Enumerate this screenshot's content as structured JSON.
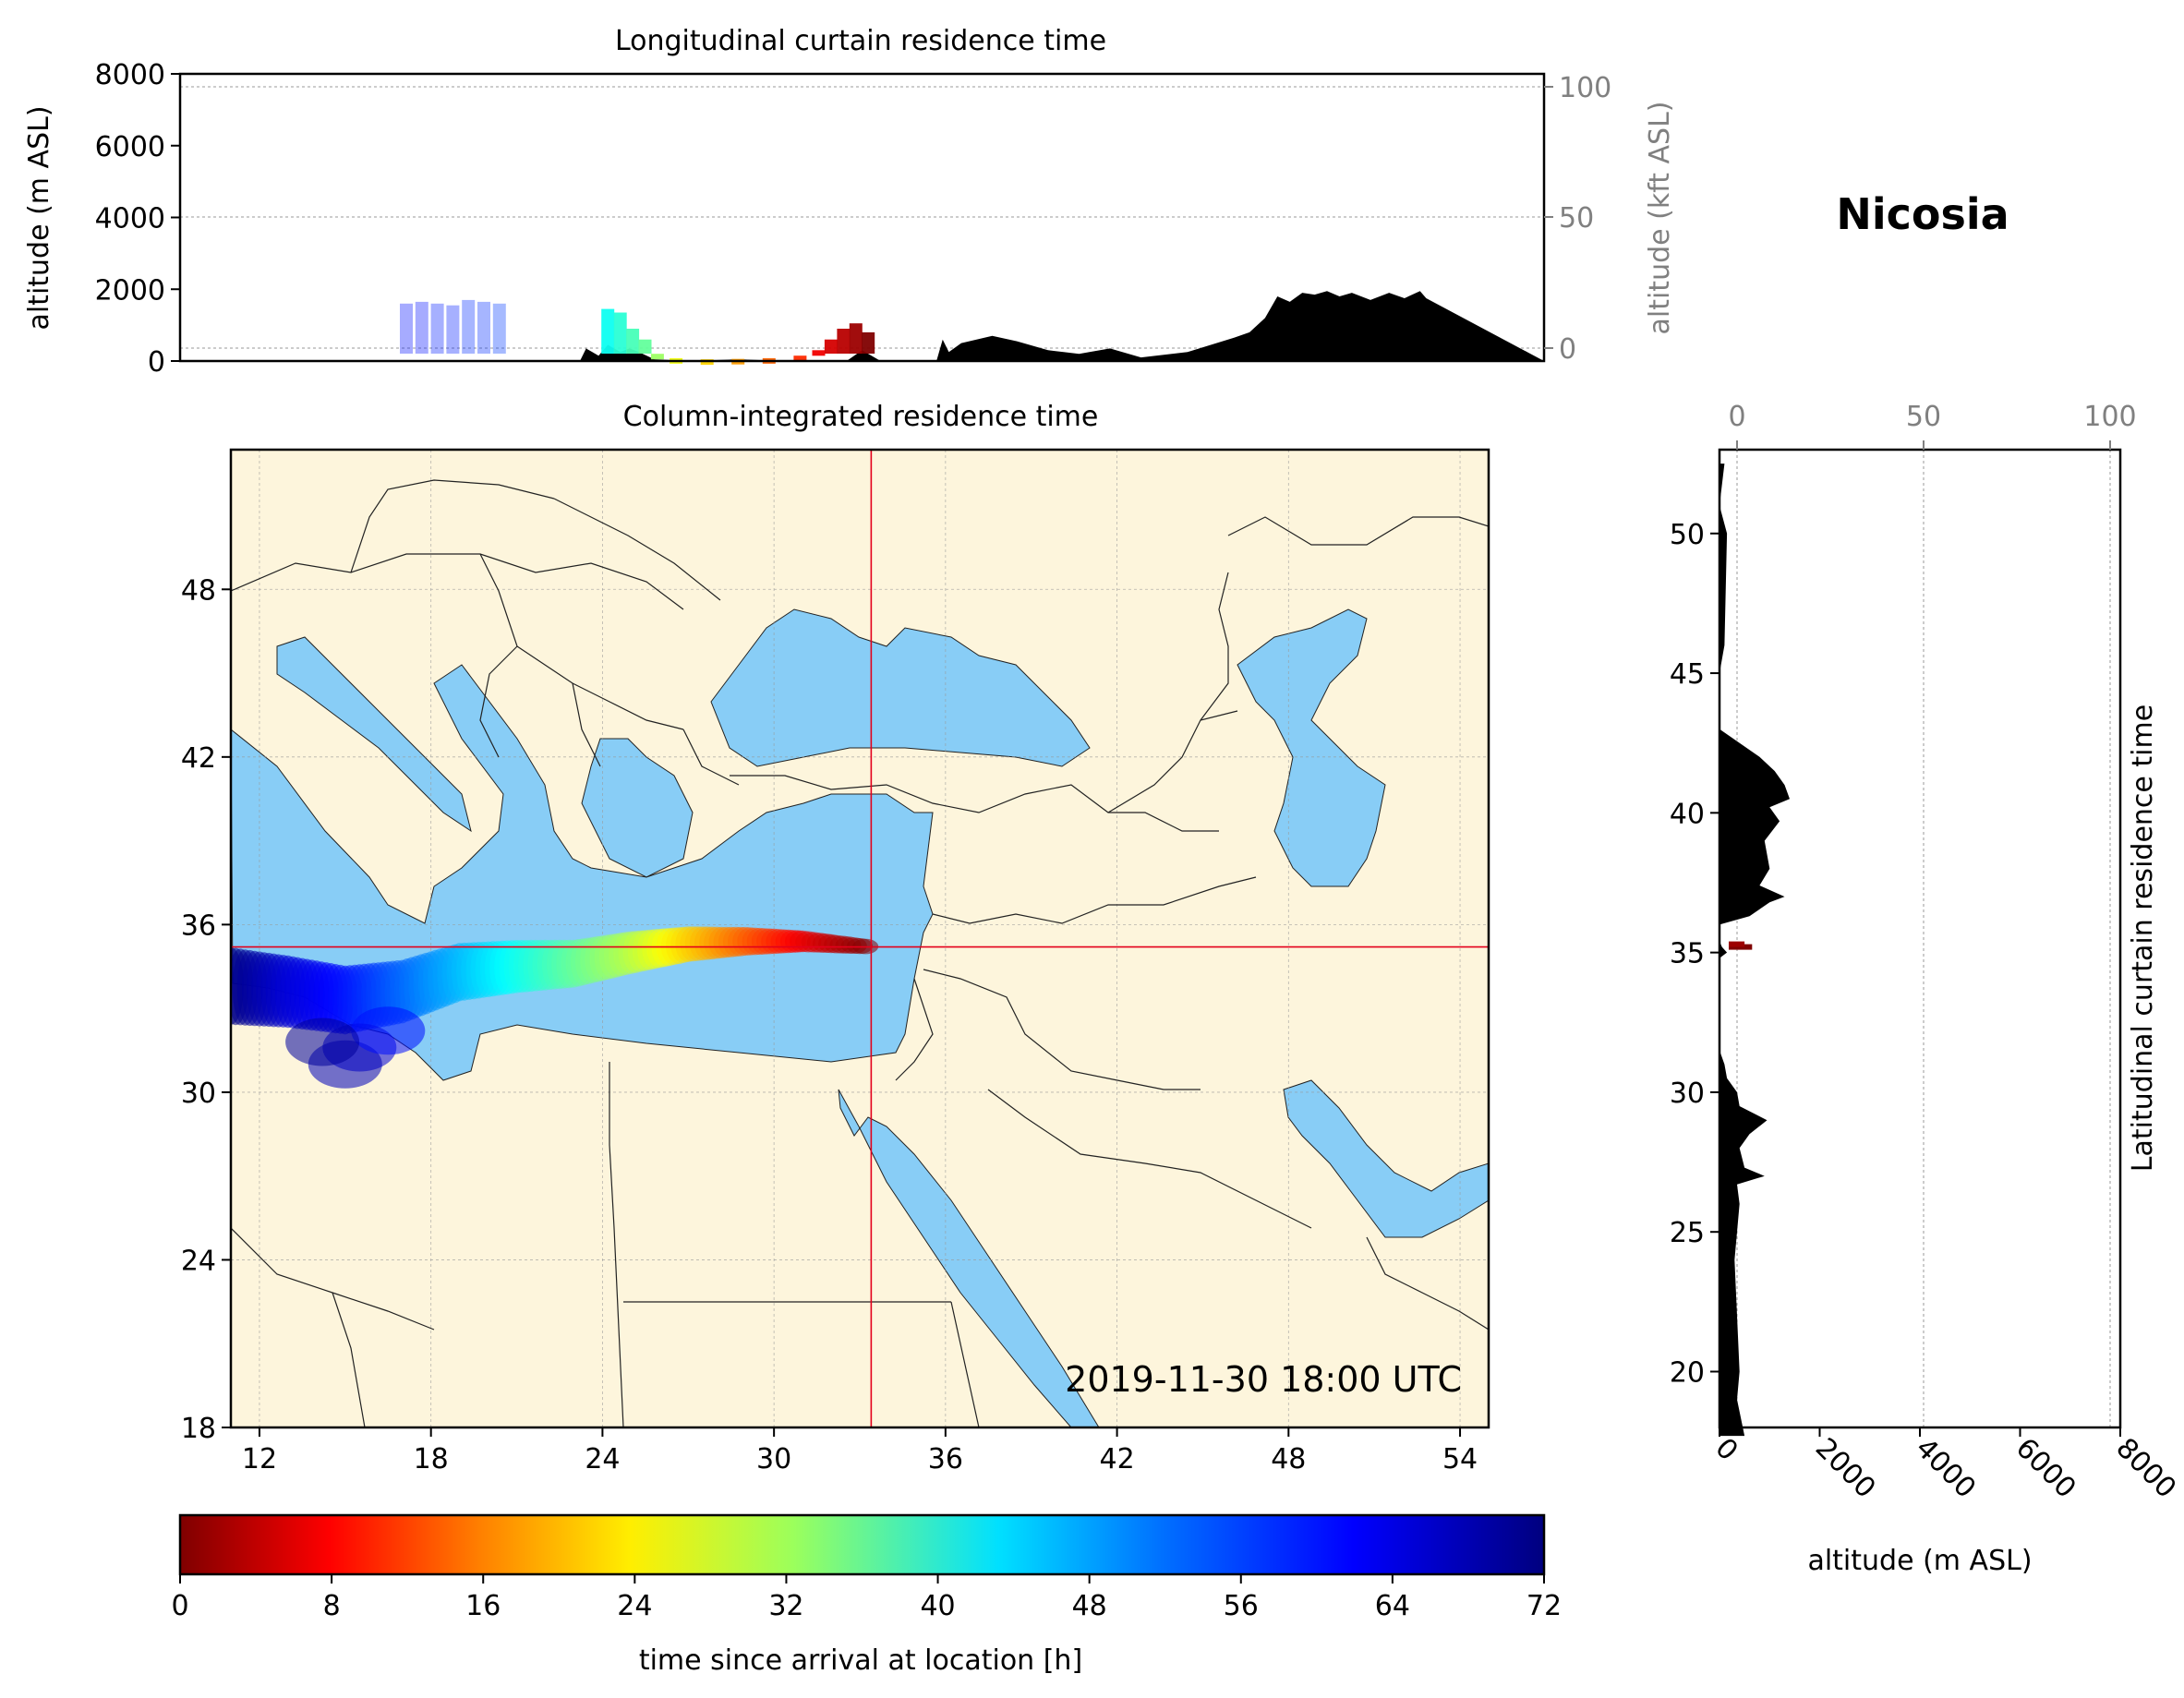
{
  "location_title": "Nicosia",
  "timestamp": "2019-11-30 18:00 UTC",
  "colors": {
    "land": "#fdf5dc",
    "sea": "#88cdf6",
    "terrain": "#000000",
    "crosshair": "#e3001b",
    "grid": "#999999"
  },
  "chart_data": [
    {
      "type": "area",
      "title": "Longitudinal curtain residence time",
      "xlabel": "",
      "ylabel": "altitude (m ASL)",
      "ylabel_right": "altitude (kft ASL)",
      "xlim": [
        11,
        55
      ],
      "ylim": [
        0,
        8000
      ],
      "yticks": [
        "0",
        "2000",
        "4000",
        "6000",
        "8000"
      ],
      "yticks_right": [
        "0",
        "50",
        "100"
      ],
      "terrain_profile": {
        "x": [
          11,
          23.9,
          24.1,
          24.5,
          24.8,
          25.2,
          25.5,
          25.8,
          26.3,
          27.5,
          29,
          30.5,
          31.5,
          32.5,
          33.0,
          33.6,
          34.5,
          35.4,
          35.6,
          35.8,
          36.2,
          37.2,
          38.0,
          39.0,
          40.0,
          41.0,
          42.0,
          43.5,
          45.0,
          45.5,
          46.0,
          46.4,
          46.8,
          47.2,
          47.6,
          48.0,
          48.4,
          48.8,
          49.4,
          50.0,
          50.5,
          51.0,
          51.2,
          55
        ],
        "y": [
          0,
          0,
          350,
          150,
          450,
          250,
          350,
          250,
          50,
          0,
          50,
          0,
          0,
          0,
          300,
          0,
          0,
          0,
          600,
          250,
          500,
          700,
          550,
          300,
          200,
          350,
          100,
          250,
          650,
          800,
          1200,
          1800,
          1650,
          1900,
          1850,
          1950,
          1800,
          1900,
          1700,
          1900,
          1750,
          1950,
          1750,
          0
        ]
      },
      "residence_plume": {
        "x": [
          18.3,
          18.8,
          19.3,
          19.8,
          20.3,
          20.8,
          21.3,
          24.8,
          25.2,
          25.6,
          26.0,
          26.4,
          27.0,
          28.0,
          29.0,
          30.0,
          31.0,
          31.6,
          32.0,
          32.4,
          32.8,
          33.2
        ],
        "y": [
          1600,
          1650,
          1600,
          1550,
          1700,
          1650,
          1600,
          1450,
          1350,
          900,
          600,
          200,
          80,
          50,
          60,
          80,
          150,
          300,
          600,
          900,
          1050,
          800
        ],
        "hours_since_arrival": [
          62,
          62,
          61,
          61,
          60,
          60,
          59,
          44,
          42,
          40,
          38,
          34,
          28,
          24,
          20,
          16,
          12,
          8,
          6,
          4,
          2,
          0
        ]
      }
    },
    {
      "type": "heatmap",
      "title": "Column-integrated residence time",
      "xlim": [
        11,
        55
      ],
      "ylim": [
        18,
        53
      ],
      "xticks": [
        "12",
        "18",
        "24",
        "30",
        "36",
        "42",
        "48",
        "54"
      ],
      "yticks": [
        "18",
        "24",
        "30",
        "36",
        "42",
        "48"
      ],
      "crosshair": {
        "lon": 33.4,
        "lat": 35.2
      },
      "plume_centerline": {
        "lon": [
          11,
          13,
          15,
          17,
          19,
          21,
          23,
          25,
          27,
          29,
          31,
          33.4
        ],
        "lat": [
          33.8,
          33.6,
          33.3,
          33.6,
          34.3,
          34.5,
          34.6,
          35.0,
          35.3,
          35.4,
          35.4,
          35.2
        ],
        "hours_since_arrival": [
          72,
          66,
          62,
          56,
          50,
          44,
          38,
          32,
          24,
          16,
          8,
          0
        ]
      }
    },
    {
      "type": "area",
      "title": "Latitudinal curtain residence time",
      "xlabel": "altitude (m ASL)",
      "xlim": [
        0,
        8000
      ],
      "xticks": [
        "0",
        "2000",
        "4000",
        "6000",
        "8000"
      ],
      "xticks_top": [
        "0",
        "50",
        "100"
      ],
      "ylim": [
        18,
        53
      ],
      "yticks": [
        "20",
        "25",
        "30",
        "35",
        "40",
        "45",
        "50"
      ],
      "terrain_profile": {
        "lat": [
          17.7,
          19,
          20,
          22,
          24,
          25,
          26,
          26.7,
          27.0,
          27.3,
          28,
          28.5,
          29,
          29.5,
          30,
          30.5,
          31,
          31.5,
          33,
          34.8,
          35.0,
          35.2,
          35.4,
          36.0,
          36.3,
          36.8,
          37.0,
          37.4,
          38,
          39,
          39.7,
          40.2,
          40.5,
          41,
          41.5,
          42,
          43,
          45,
          46,
          50,
          51,
          52.5
        ],
        "alt": [
          500,
          350,
          400,
          350,
          300,
          350,
          400,
          350,
          900,
          500,
          400,
          600,
          950,
          400,
          350,
          150,
          100,
          0,
          0,
          0,
          150,
          50,
          0,
          0,
          600,
          1000,
          1300,
          800,
          1000,
          900,
          1200,
          1000,
          1400,
          1300,
          1100,
          800,
          0,
          0,
          100,
          150,
          0,
          100
        ]
      },
      "residence_marks": {
        "lat": [
          35.2,
          35.3
        ],
        "alt": [
          650,
          500
        ],
        "hours_since_arrival": [
          0,
          2
        ]
      }
    },
    {
      "type": "colorbar",
      "label": "time since arrival at location [h]",
      "range": [
        0,
        72
      ],
      "ticks": [
        "0",
        "8",
        "16",
        "24",
        "32",
        "40",
        "48",
        "56",
        "64",
        "72"
      ]
    }
  ]
}
